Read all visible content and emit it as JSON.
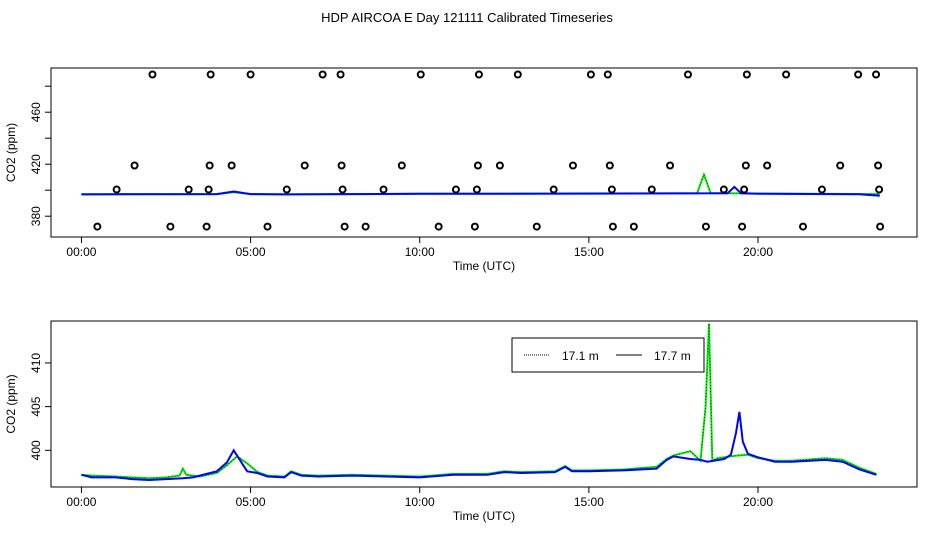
{
  "title": "HDP AIRCOA E  Day 121111  Calibrated Timeseries",
  "colors": {
    "series_17_1": "#00ee00",
    "series_17_7": "#0000ff",
    "markers": "#000000"
  },
  "chart_data": [
    {
      "type": "scatter",
      "xlabel": "Time (UTC)",
      "ylabel": "CO2 (ppm)",
      "xlim": [
        -0.9,
        24.7
      ],
      "ylim": [
        364,
        494
      ],
      "xticks": [
        0,
        5,
        10,
        15,
        20
      ],
      "xtick_labels": [
        "00:00",
        "05:00",
        "10:00",
        "15:00",
        "20:00"
      ],
      "yticks": [
        380,
        400,
        420,
        440,
        460,
        480
      ],
      "ytick_labels": [
        "380",
        "",
        "420",
        "",
        "460",
        ""
      ],
      "markers": {
        "x": [
          2.1,
          3.82,
          5.0,
          7.13,
          7.66,
          10.03,
          11.75,
          12.9,
          15.06,
          15.56,
          17.93,
          19.67,
          20.83,
          22.96,
          23.49,
          1.57,
          3.79,
          4.44,
          6.6,
          7.69,
          9.47,
          11.72,
          12.37,
          14.53,
          15.62,
          17.4,
          19.64,
          20.27,
          22.43,
          23.55,
          1.04,
          3.17,
          3.76,
          6.07,
          7.72,
          8.93,
          11.07,
          11.69,
          13.96,
          15.68,
          16.86,
          18.99,
          19.59,
          21.89,
          23.58,
          0.47,
          2.63,
          3.7,
          5.5,
          7.78,
          8.4,
          10.56,
          11.63,
          13.46,
          15.71,
          16.33,
          18.46,
          19.53,
          21.33,
          23.61
        ],
        "y": [
          489,
          489,
          489,
          489,
          489,
          489,
          489,
          489,
          489,
          489,
          489,
          489,
          489,
          489,
          489,
          419,
          419,
          419,
          419,
          419,
          419,
          419,
          419,
          419,
          419,
          419,
          419,
          419,
          419,
          419,
          400.5,
          400.5,
          400.5,
          400.5,
          400.5,
          400.5,
          400.5,
          400.5,
          400.5,
          400.5,
          400.5,
          400.5,
          400.5,
          400.5,
          400.5,
          372,
          372,
          372,
          372,
          372,
          372,
          372,
          372,
          372,
          372,
          372,
          372,
          372,
          372,
          372
        ]
      },
      "series": [
        {
          "x": [
            0,
            4,
            4.5,
            5,
            6,
            10,
            15,
            18.2,
            18.4,
            18.6,
            19,
            23.6
          ],
          "y": [
            396.9,
            397,
            398.5,
            397,
            396.8,
            397.2,
            397.5,
            397.6,
            412,
            397.6,
            397.6,
            397
          ]
        },
        {
          "x": [
            0,
            4,
            4.5,
            5,
            6,
            10,
            15,
            19.1,
            19.3,
            19.5,
            20,
            23,
            23.6
          ],
          "y": [
            396.8,
            397,
            399,
            397,
            396.8,
            397.2,
            397.4,
            397.6,
            402.5,
            397.6,
            397.3,
            396.9,
            395.8
          ]
        }
      ]
    },
    {
      "type": "line",
      "xlabel": "Time (UTC)",
      "ylabel": "CO2 (ppm)",
      "xlim": [
        -0.9,
        24.7
      ],
      "ylim": [
        395.8,
        414.8
      ],
      "xticks": [
        0,
        5,
        10,
        15,
        20
      ],
      "xtick_labels": [
        "00:00",
        "05:00",
        "10:00",
        "15:00",
        "20:00"
      ],
      "yticks": [
        400,
        405,
        410
      ],
      "ytick_labels": [
        "400",
        "405",
        "410"
      ],
      "legend": {
        "position": "top-right",
        "entries": [
          "17.1 m",
          "17.7 m"
        ]
      },
      "series": [
        {
          "name": "17.1 m",
          "x": [
            0,
            0.3,
            1,
            1.5,
            2,
            2.5,
            2.9,
            3.0,
            3.1,
            3.5,
            4,
            4.3,
            4.6,
            4.9,
            5.2,
            5.5,
            6,
            6.2,
            6.5,
            7,
            8,
            9,
            10,
            11,
            12,
            12.5,
            13,
            14,
            14.3,
            14.5,
            15,
            16,
            17,
            17.3,
            17.5,
            18,
            18.3,
            18.45,
            18.55,
            18.65,
            18.8,
            19,
            19.4,
            19.7,
            20,
            20.5,
            21,
            22,
            22.5,
            23,
            23.5
          ],
          "y": [
            397.2,
            397.1,
            397.0,
            396.9,
            396.8,
            396.9,
            397.1,
            397.9,
            397.2,
            397.0,
            397.4,
            398.3,
            399.3,
            398.5,
            397.5,
            397.1,
            397.0,
            397.6,
            397.2,
            397.1,
            397.2,
            397.1,
            397.0,
            397.3,
            397.3,
            397.6,
            397.5,
            397.6,
            398.2,
            397.7,
            397.7,
            397.8,
            398.1,
            399.0,
            399.4,
            399.9,
            398.8,
            405,
            414.5,
            398.8,
            399.1,
            399.2,
            399.4,
            399.5,
            399.1,
            398.8,
            398.8,
            399.1,
            398.9,
            398.0,
            397.3
          ]
        },
        {
          "name": "17.7 m",
          "x": [
            0,
            0.3,
            1,
            1.5,
            2,
            2.5,
            3,
            3.3,
            3.7,
            4,
            4.3,
            4.5,
            4.7,
            4.9,
            5.2,
            5.5,
            6,
            6.2,
            6.5,
            7,
            8,
            9,
            10,
            11,
            12,
            12.5,
            13,
            14,
            14.3,
            14.5,
            15,
            16,
            17,
            17.3,
            17.5,
            18,
            18.3,
            18.5,
            19,
            19.2,
            19.35,
            19.45,
            19.55,
            19.7,
            20,
            20.5,
            21,
            22,
            22.5,
            23,
            23.5
          ],
          "y": [
            397.2,
            396.9,
            396.9,
            396.7,
            396.6,
            396.7,
            396.8,
            396.9,
            397.3,
            397.6,
            398.6,
            400.0,
            398.8,
            397.6,
            397.4,
            397.0,
            396.9,
            397.5,
            397.1,
            397.0,
            397.1,
            397.0,
            396.9,
            397.2,
            397.2,
            397.5,
            397.4,
            397.5,
            398.1,
            397.6,
            397.6,
            397.7,
            397.9,
            398.9,
            399.3,
            399.0,
            398.9,
            398.7,
            399.0,
            399.5,
            402.0,
            404.4,
            401.0,
            399.6,
            399.2,
            398.7,
            398.7,
            398.9,
            398.7,
            397.8,
            397.2
          ]
        }
      ]
    }
  ]
}
